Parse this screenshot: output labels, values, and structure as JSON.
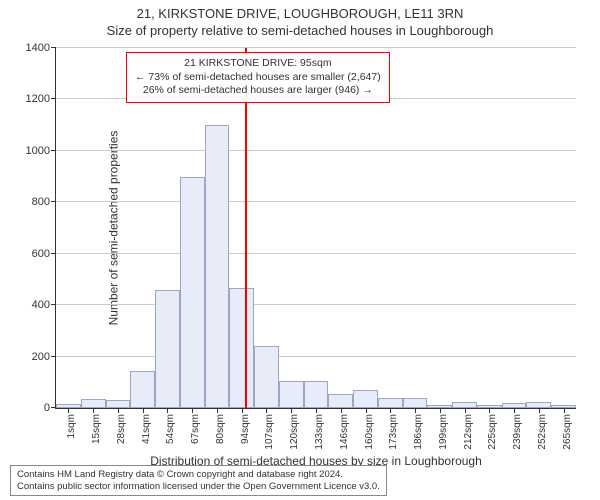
{
  "chart": {
    "type": "histogram",
    "title_main": "21, KIRKSTONE DRIVE, LOUGHBOROUGH, LE11 3RN",
    "title_sub": "Size of property relative to semi-detached houses in Loughborough",
    "x_axis_label": "Distribution of semi-detached houses by size in Loughborough",
    "y_axis_label": "Number of semi-detached properties",
    "background_color": "#ffffff",
    "bar_fill": "#e8ecf8",
    "bar_border": "#9da6c4",
    "grid_color": "#cccccc",
    "axis_color": "#333333",
    "marker_color": "#ff0000",
    "ylim": [
      0,
      1400
    ],
    "ytick_step": 200,
    "yticks": [
      0,
      200,
      400,
      600,
      800,
      1000,
      1200,
      1400
    ],
    "x_categories": [
      "1sqm",
      "15sqm",
      "28sqm",
      "41sqm",
      "54sqm",
      "67sqm",
      "80sqm",
      "94sqm",
      "107sqm",
      "120sqm",
      "133sqm",
      "146sqm",
      "160sqm",
      "173sqm",
      "186sqm",
      "199sqm",
      "212sqm",
      "225sqm",
      "239sqm",
      "252sqm",
      "265sqm"
    ],
    "bar_values": [
      15,
      35,
      30,
      145,
      460,
      900,
      1100,
      465,
      240,
      105,
      105,
      55,
      70,
      40,
      40,
      10,
      25,
      12,
      20,
      25,
      10
    ],
    "marker_position_sqm": 95,
    "info_box": {
      "line1": "21 KIRKSTONE DRIVE: 95sqm",
      "line2": "← 73% of semi-detached houses are smaller (2,647)",
      "line3": "26% of semi-detached houses are larger (946) →",
      "border_color": "#ff0000"
    },
    "footer": {
      "line1": "Contains HM Land Registry data © Crown copyright and database right 2024.",
      "line2": "Contains public sector information licensed under the Open Government Licence v3.0.",
      "border_color": "#888888"
    },
    "title_fontsize": 13,
    "label_fontsize": 12,
    "tick_fontsize": 11,
    "xtick_fontsize": 10,
    "footer_fontsize": 9.5,
    "info_fontsize": 10.5
  }
}
